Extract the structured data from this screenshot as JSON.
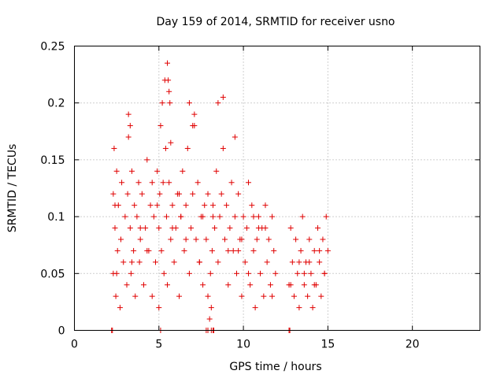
{
  "chart_data": {
    "type": "scatter",
    "title": "Day 159 of 2014, SRMTID for receiver usno",
    "xlabel": "GPS time / hours",
    "ylabel": "SRMTID / TECUs",
    "xlim": [
      0,
      24
    ],
    "ylim": [
      0,
      0.25
    ],
    "xticks": [
      0,
      5,
      10,
      15,
      20
    ],
    "yticks": [
      0,
      0.05,
      0.1,
      0.15,
      0.2,
      0.25
    ],
    "ytick_labels": [
      "0",
      "0.05",
      "0.1",
      "0.15",
      "0.2",
      "0.25"
    ],
    "grid": true,
    "marker": "+",
    "color": "#e00000",
    "series": [
      {
        "name": "SRMTID",
        "x": [
          2.3,
          2.3,
          2.35,
          2.4,
          2.45,
          2.5,
          2.55,
          2.6,
          2.7,
          2.75,
          2.8,
          2.9,
          3.0,
          3.1,
          3.15,
          3.2,
          3.3,
          3.35,
          3.4,
          3.5,
          3.55,
          3.6,
          3.7,
          3.8,
          3.85,
          3.9,
          4.0,
          4.1,
          4.2,
          4.3,
          4.4,
          4.5,
          4.6,
          4.7,
          4.8,
          4.9,
          5.0,
          5.0,
          5.05,
          5.1,
          5.15,
          5.2,
          5.25,
          5.3,
          5.35,
          5.4,
          5.45,
          5.5,
          5.6,
          5.7,
          5.8,
          5.9,
          6.0,
          6.1,
          6.2,
          6.3,
          6.4,
          6.5,
          6.6,
          6.7,
          6.8,
          6.9,
          7.0,
          7.1,
          7.2,
          7.3,
          7.4,
          7.5,
          7.6,
          7.7,
          7.8,
          7.9,
          8.0,
          8.05,
          8.1,
          8.15,
          8.2,
          8.3,
          8.4,
          8.5,
          8.6,
          8.7,
          8.8,
          8.9,
          9.0,
          9.1,
          9.2,
          9.3,
          9.4,
          9.5,
          9.6,
          9.7,
          9.8,
          9.9,
          10.0,
          10.1,
          10.2,
          10.3,
          10.4,
          10.5,
          10.6,
          10.7,
          10.8,
          10.9,
          11.0,
          11.1,
          11.2,
          11.3,
          11.4,
          11.5,
          11.6,
          11.7,
          11.8,
          11.9,
          12.7,
          12.8,
          12.9,
          13.0,
          13.1,
          13.2,
          13.3,
          13.4,
          13.5,
          13.6,
          13.7,
          13.8,
          13.9,
          14.0,
          14.1,
          14.2,
          14.3,
          14.4,
          14.5,
          14.6,
          14.7,
          14.8,
          14.9,
          15.0,
          3.2,
          3.3,
          5.5,
          5.55,
          5.6,
          5.65,
          5.7,
          6.8,
          7.0,
          7.1,
          8.5,
          8.8,
          9.5,
          2.4,
          4.6,
          6.2,
          7.6,
          9.1,
          10.6,
          11.3,
          13.3,
          14.5,
          3.9,
          4.9,
          6.3,
          7.9,
          9.9,
          10.9,
          13.6,
          14.2,
          2.5,
          3.4,
          4.3,
          5.8,
          6.6,
          7.4,
          8.2,
          9.7,
          10.3,
          11.7,
          12.8,
          13.9,
          14.8
        ],
        "y": [
          0.12,
          0.05,
          0.16,
          0.09,
          0.03,
          0.14,
          0.07,
          0.11,
          0.02,
          0.08,
          0.13,
          0.06,
          0.1,
          0.04,
          0.12,
          0.17,
          0.09,
          0.05,
          0.14,
          0.07,
          0.11,
          0.03,
          0.1,
          0.13,
          0.06,
          0.08,
          0.12,
          0.04,
          0.09,
          0.15,
          0.07,
          0.11,
          0.03,
          0.1,
          0.06,
          0.14,
          0.09,
          0.02,
          0.12,
          0.18,
          0.07,
          0.2,
          0.13,
          0.05,
          0.22,
          0.16,
          0.1,
          0.04,
          0.13,
          0.08,
          0.11,
          0.06,
          0.09,
          0.12,
          0.03,
          0.1,
          0.14,
          0.07,
          0.11,
          0.16,
          0.05,
          0.09,
          0.12,
          0.18,
          0.08,
          0.13,
          0.06,
          0.1,
          0.04,
          0.11,
          0.08,
          0.03,
          0.01,
          0.05,
          0.02,
          0.07,
          0.11,
          0.09,
          0.14,
          0.06,
          0.1,
          0.12,
          0.16,
          0.08,
          0.11,
          0.04,
          0.09,
          0.13,
          0.07,
          0.1,
          0.05,
          0.12,
          0.08,
          0.03,
          0.1,
          0.06,
          0.09,
          0.13,
          0.04,
          0.11,
          0.07,
          0.02,
          0.08,
          0.1,
          0.05,
          0.09,
          0.03,
          0.11,
          0.06,
          0.08,
          0.04,
          0.1,
          0.07,
          0.05,
          0.04,
          0.09,
          0.06,
          0.03,
          0.08,
          0.05,
          0.02,
          0.07,
          0.1,
          0.04,
          0.06,
          0.03,
          0.08,
          0.05,
          0.02,
          0.07,
          0.04,
          0.09,
          0.06,
          0.03,
          0.08,
          0.05,
          0.1,
          0.07,
          0.19,
          0.18,
          0.235,
          0.22,
          0.21,
          0.2,
          0.165,
          0.2,
          0.18,
          0.19,
          0.2,
          0.205,
          0.17,
          0.11,
          0.13,
          0.12,
          0.1,
          0.07,
          0.1,
          0.09,
          0.06,
          0.07,
          0.09,
          0.11,
          0.1,
          0.12,
          0.08,
          0.09,
          0.05,
          0.04,
          0.05,
          0.06,
          0.07,
          0.09,
          0.08,
          0.06,
          0.1,
          0.07,
          0.05,
          0.03,
          0.04,
          0.06,
          0.05
        ],
        "zero_x": [
          2.2,
          2.25,
          5.1,
          7.8,
          7.9,
          8.1,
          8.2,
          8.25,
          12.7,
          12.75
        ]
      }
    ]
  }
}
